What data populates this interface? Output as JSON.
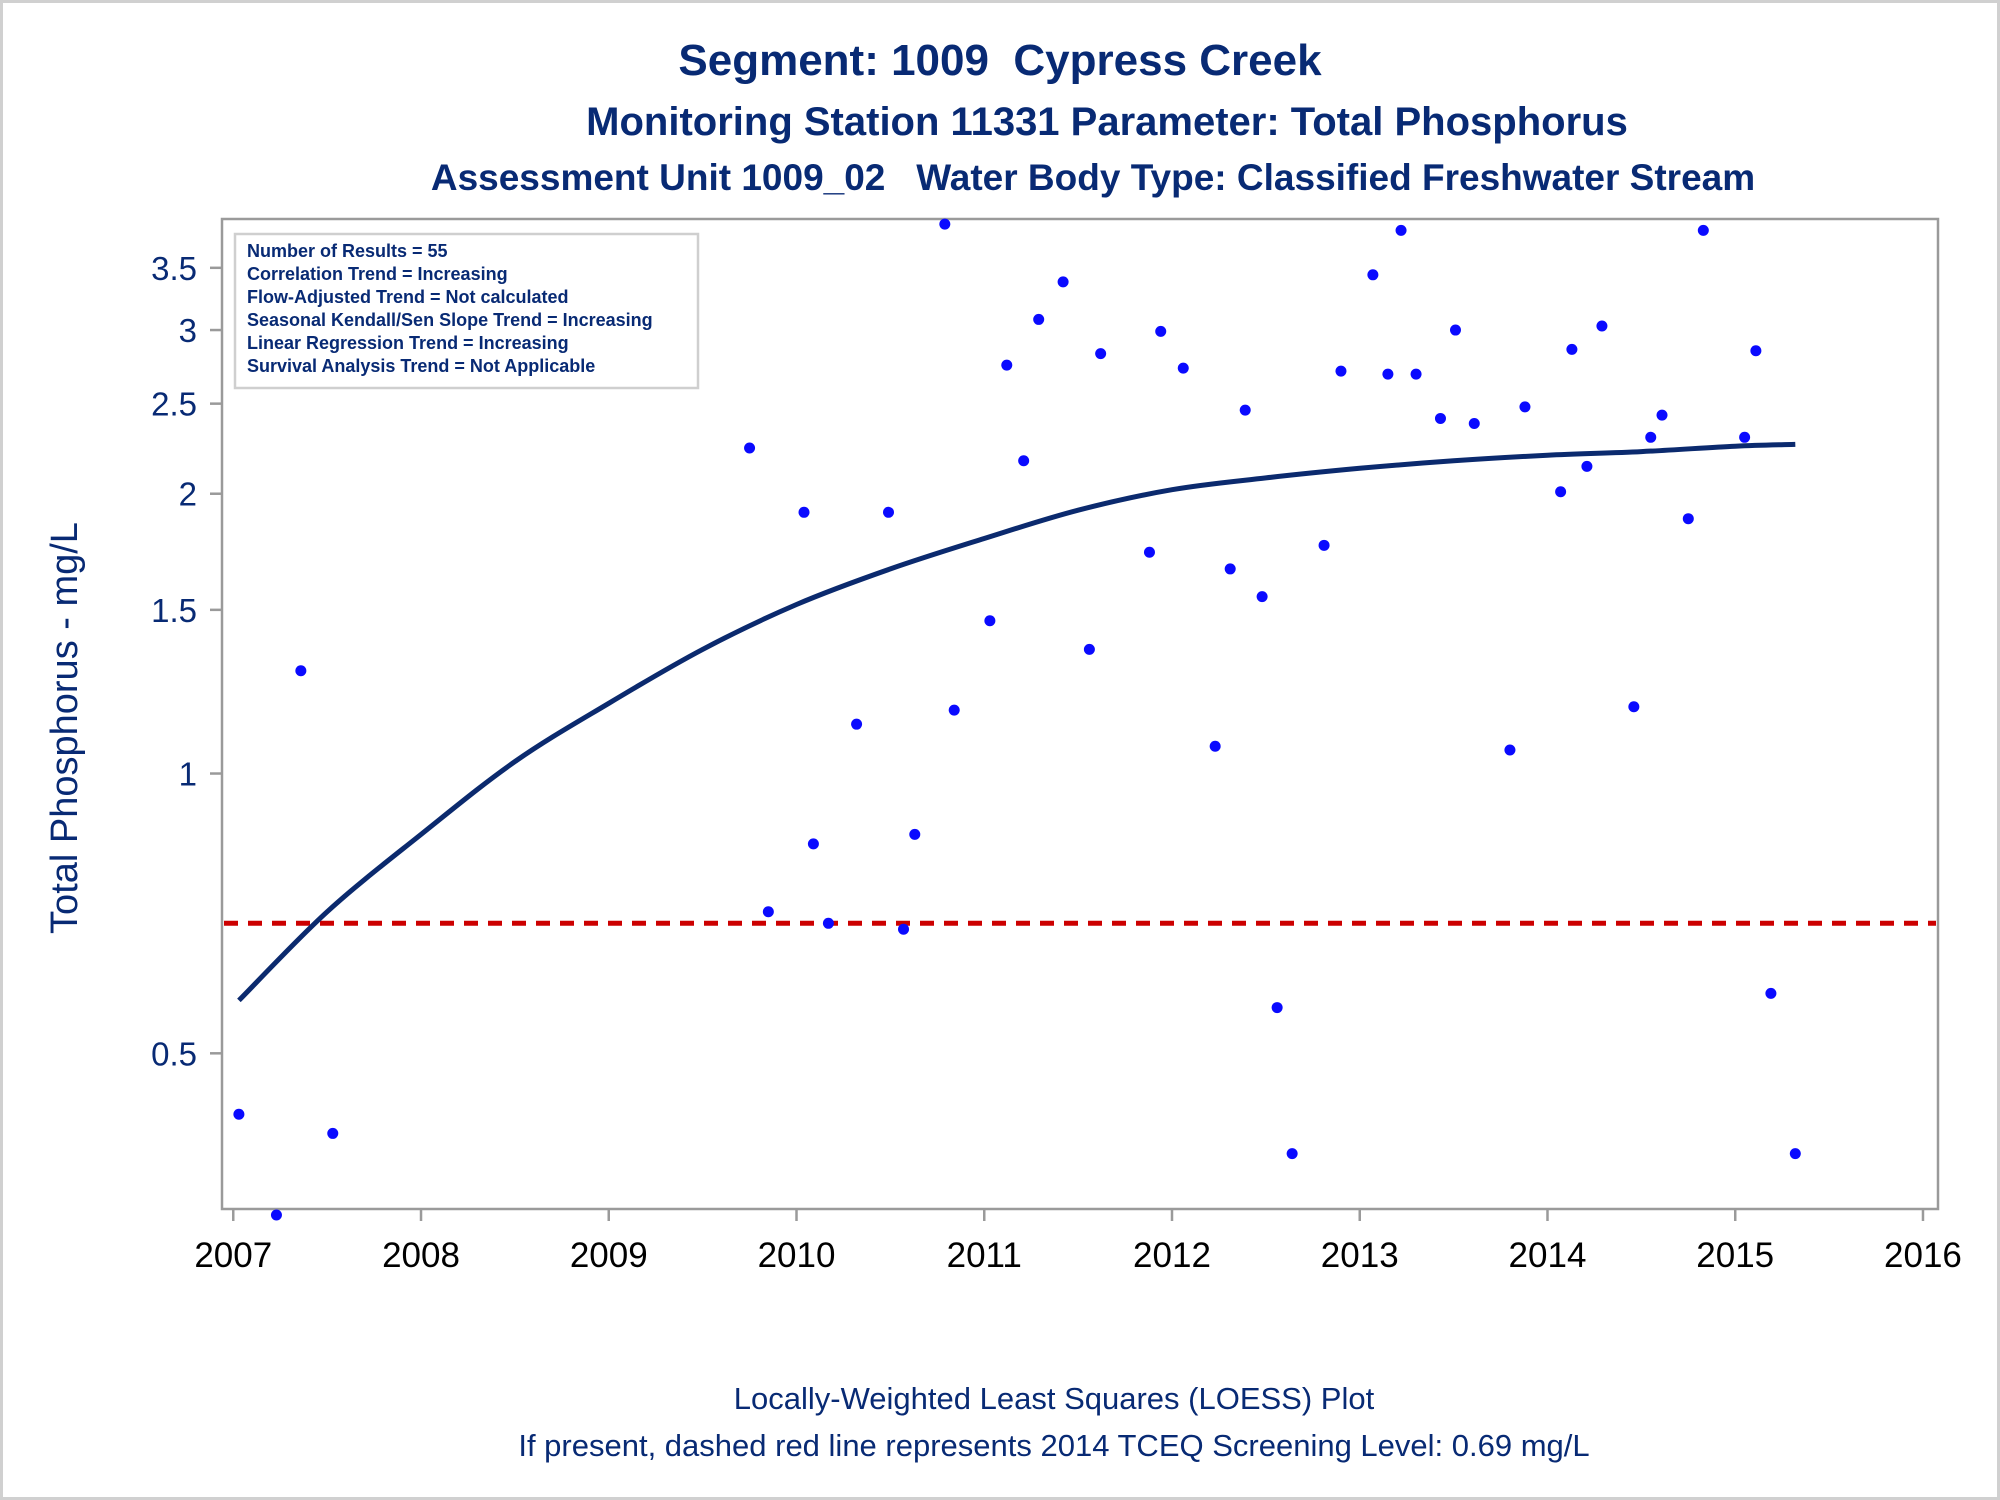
{
  "header": {
    "title": "Segment: 1009  Cypress Creek",
    "subtitle": "Monitoring Station 11331 Parameter: Total Phosphorus",
    "subtitle2": "Assessment Unit 1009_02   Water Body Type: Classified Freshwater Stream"
  },
  "footer": {
    "line1": "Locally-Weighted Least Squares (LOESS) Plot",
    "line2": "If present, dashed red line represents 2014 TCEQ Screening Level: 0.69 mg/L"
  },
  "colors": {
    "text": "#082a74",
    "points": "#0a0aff",
    "loess": "#0b2a6e",
    "screening": "#cc0000",
    "axis": "#9a9a9a"
  },
  "chart_data": {
    "type": "scatter",
    "title": "Segment: 1009  Cypress Creek",
    "xlabel": "",
    "ylabel": "Total Phosphorus - mg/L",
    "xlim": [
      2006.94,
      2016.08
    ],
    "ylim": [
      0.34,
      3.95
    ],
    "yscale": "log",
    "xticks": [
      2007,
      2008,
      2009,
      2010,
      2011,
      2012,
      2013,
      2014,
      2015,
      2016
    ],
    "yticks": [
      0.5,
      1,
      1.5,
      2,
      2.5,
      3,
      3.5
    ],
    "grid": false,
    "legend": {
      "placement": "top-left",
      "lines": [
        "Number of Results = 55",
        "Correlation Trend = Increasing",
        "Flow-Adjusted Trend = Not calculated",
        "Seasonal Kendall/Sen Slope Trend = Increasing",
        "Linear Regression Trend = Increasing",
        "Survival Analysis Trend = Not Applicable"
      ]
    },
    "screening_level": 0.69,
    "series": [
      {
        "kind": "points",
        "x": [
          2007.03,
          2007.23,
          2007.36,
          2007.53,
          2009.75,
          2009.85,
          2010.04,
          2010.09,
          2010.17,
          2010.32,
          2010.49,
          2010.57,
          2010.63,
          2010.79,
          2010.84,
          2011.03,
          2011.12,
          2011.21,
          2011.29,
          2011.42,
          2011.56,
          2011.62,
          2011.88,
          2011.94,
          2012.06,
          2012.23,
          2012.31,
          2012.39,
          2012.48,
          2012.56,
          2012.64,
          2012.81,
          2012.9,
          2013.07,
          2013.15,
          2013.22,
          2013.3,
          2013.43,
          2013.51,
          2013.61,
          2013.8,
          2013.88,
          2014.07,
          2014.13,
          2014.21,
          2014.29,
          2014.46,
          2014.55,
          2014.61,
          2014.75,
          2014.83,
          2015.05,
          2015.11,
          2015.19,
          2015.32
        ],
        "y": [
          0.43,
          0.335,
          1.29,
          0.41,
          2.24,
          0.71,
          1.91,
          0.84,
          0.69,
          1.13,
          1.91,
          0.68,
          0.86,
          3.9,
          1.17,
          1.46,
          2.75,
          2.17,
          3.08,
          3.38,
          1.36,
          2.83,
          1.73,
          2.99,
          2.73,
          1.07,
          1.66,
          2.46,
          1.55,
          0.56,
          0.39,
          1.76,
          2.71,
          3.44,
          2.69,
          3.84,
          2.69,
          2.41,
          3.0,
          2.38,
          1.06,
          2.48,
          2.01,
          2.86,
          2.14,
          3.03,
          1.18,
          2.3,
          2.43,
          1.88,
          3.84,
          2.3,
          2.85,
          0.58,
          0.39
        ]
      },
      {
        "kind": "loess",
        "x": [
          2007.03,
          2007.5,
          2008.0,
          2008.5,
          2009.0,
          2009.5,
          2010.0,
          2010.5,
          2011.0,
          2011.5,
          2012.0,
          2012.5,
          2013.0,
          2013.5,
          2014.0,
          2014.5,
          2015.0,
          2015.32
        ],
        "y": [
          0.57,
          0.71,
          0.86,
          1.03,
          1.19,
          1.36,
          1.52,
          1.66,
          1.79,
          1.92,
          2.02,
          2.08,
          2.13,
          2.17,
          2.2,
          2.22,
          2.25,
          2.26
        ]
      }
    ]
  }
}
